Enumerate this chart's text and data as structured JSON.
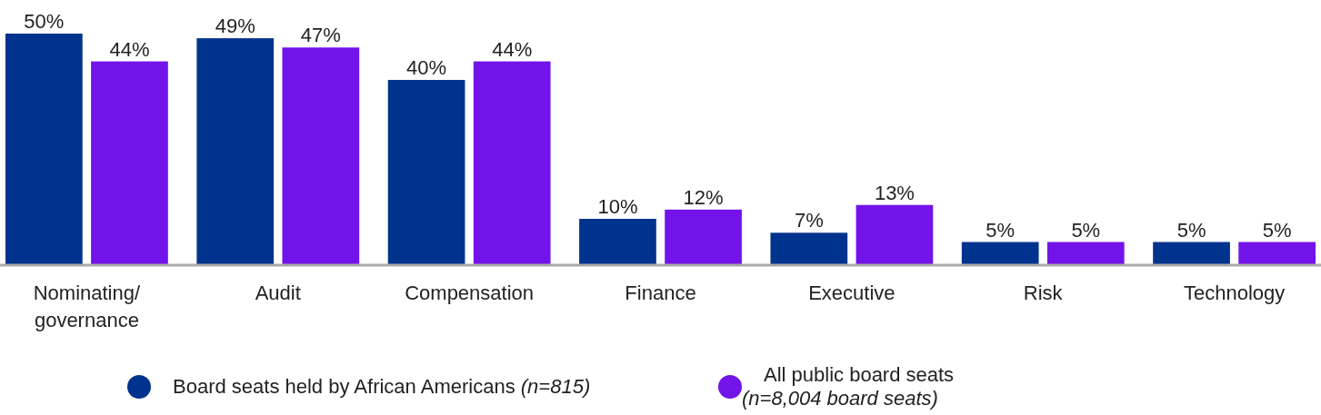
{
  "chart_data": {
    "type": "bar",
    "categories": [
      "Nominating/ governance",
      "Audit",
      "Compensation",
      "Finance",
      "Executive",
      "Risk",
      "Technology"
    ],
    "series": [
      {
        "name": "Board seats held by African Americans (n=815)",
        "color": "#00338d",
        "values": [
          50,
          49,
          40,
          10,
          7,
          5,
          5
        ],
        "value_labels": [
          "50%",
          "49%",
          "40%",
          "10%",
          "7%",
          "5%",
          "5%"
        ]
      },
      {
        "name": "All public board seats (n=8,004 board seats)",
        "color": "#7213ea",
        "values": [
          44,
          47,
          44,
          12,
          13,
          5,
          5
        ],
        "value_labels": [
          "44%",
          "47%",
          "44%",
          "12%",
          "13%",
          "5%",
          "5%"
        ]
      }
    ],
    "legend": "bottom"
  }
}
